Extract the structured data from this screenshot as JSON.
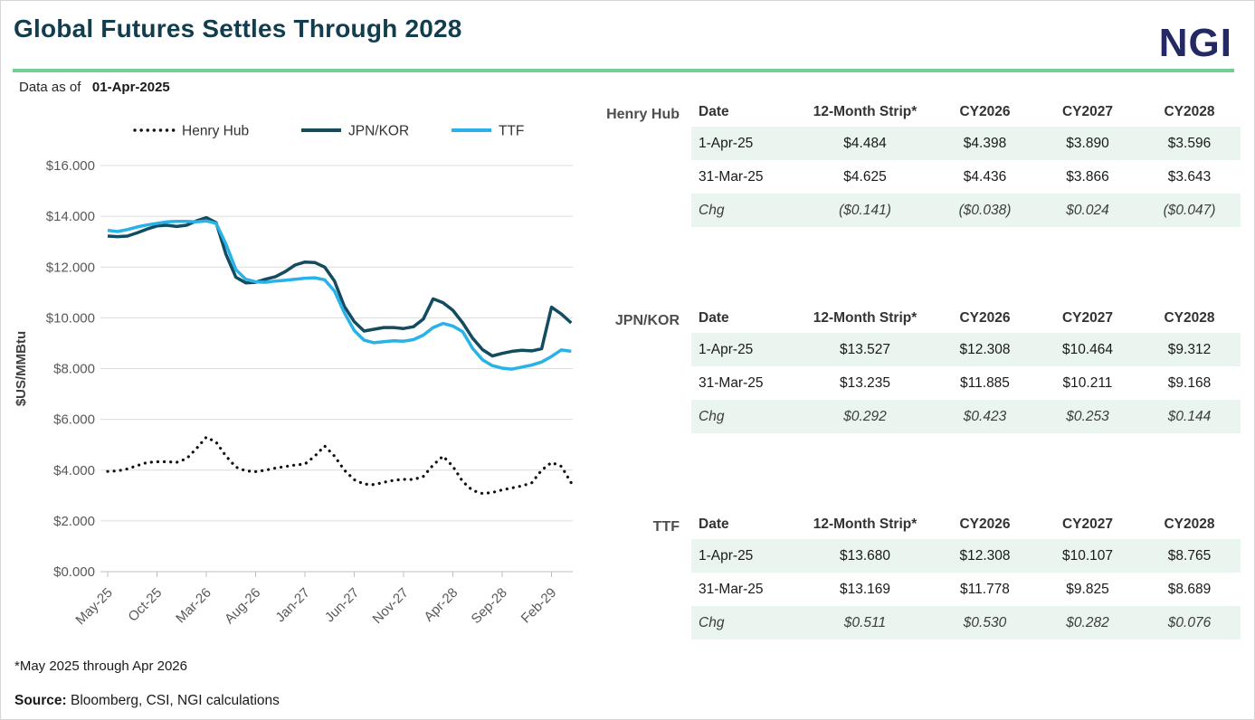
{
  "header": {
    "title": "Global Futures Settles Through 2028",
    "logo": "NGI",
    "data_as_of_label": "Data as of",
    "data_as_of_value": "01-Apr-2025"
  },
  "colors": {
    "title": "#113d4f",
    "logo": "#242963",
    "accent_green": "#72ce93",
    "row_green": "#e9f5ee",
    "henry_hub_line": "#111111",
    "jpn_kor_line": "#134b60",
    "ttf_line": "#29b2e8",
    "negative_red": "#f20000",
    "gridline": "#dcdcdc",
    "axis_text": "#595959"
  },
  "chart_data": {
    "type": "line",
    "title": "",
    "xlabel": "",
    "ylabel": "$US/MMBtu",
    "ylim": [
      0,
      16
    ],
    "ytick_labels": [
      "$0.000",
      "$2.000",
      "$4.000",
      "$6.000",
      "$8.000",
      "$10.000",
      "$12.000",
      "$14.000",
      "$16.000"
    ],
    "ytick_values": [
      0,
      2,
      4,
      6,
      8,
      10,
      12,
      14,
      16
    ],
    "grid": true,
    "legend_position": "top",
    "x_start": "May-2025",
    "x_end": "Apr-2029",
    "xtick_labels": [
      "May-25",
      "Oct-25",
      "Mar-26",
      "Aug-26",
      "Jan-27",
      "Jun-27",
      "Nov-27",
      "Apr-28",
      "Sep-28",
      "Feb-29"
    ],
    "xtick_month_indexes": [
      0,
      5,
      10,
      15,
      20,
      25,
      30,
      35,
      40,
      45
    ],
    "series": [
      {
        "name": "Henry Hub",
        "style": "dotted",
        "color": "#111111",
        "values": [
          3.95,
          3.97,
          4.05,
          4.18,
          4.3,
          4.33,
          4.33,
          4.31,
          4.45,
          4.85,
          5.3,
          5.1,
          4.55,
          4.12,
          3.97,
          3.94,
          4.0,
          4.08,
          4.14,
          4.2,
          4.24,
          4.55,
          4.95,
          4.55,
          4.0,
          3.62,
          3.45,
          3.43,
          3.52,
          3.6,
          3.64,
          3.63,
          3.75,
          4.2,
          4.55,
          4.15,
          3.55,
          3.2,
          3.08,
          3.12,
          3.22,
          3.3,
          3.38,
          3.5,
          4.0,
          4.3,
          4.15,
          3.5
        ]
      },
      {
        "name": "JPN/KOR",
        "style": "solid",
        "color": "#134b60",
        "values": [
          13.22,
          13.2,
          13.22,
          13.35,
          13.5,
          13.62,
          13.65,
          13.6,
          13.65,
          13.82,
          13.95,
          13.75,
          12.5,
          11.6,
          11.38,
          11.4,
          11.52,
          11.62,
          11.82,
          12.08,
          12.2,
          12.18,
          12.0,
          11.45,
          10.45,
          9.85,
          9.48,
          9.55,
          9.62,
          9.62,
          9.58,
          9.65,
          9.95,
          10.75,
          10.6,
          10.3,
          9.8,
          9.2,
          8.75,
          8.5,
          8.6,
          8.68,
          8.72,
          8.7,
          8.78,
          10.42,
          10.15,
          9.8
        ]
      },
      {
        "name": "TTF",
        "style": "solid",
        "color": "#29b2e8",
        "values": [
          13.45,
          13.4,
          13.48,
          13.58,
          13.66,
          13.72,
          13.78,
          13.8,
          13.8,
          13.78,
          13.82,
          13.72,
          12.9,
          11.9,
          11.52,
          11.42,
          11.4,
          11.45,
          11.48,
          11.52,
          11.56,
          11.58,
          11.5,
          11.05,
          10.2,
          9.5,
          9.12,
          9.02,
          9.06,
          9.1,
          9.08,
          9.14,
          9.32,
          9.62,
          9.78,
          9.68,
          9.45,
          8.8,
          8.35,
          8.12,
          8.02,
          7.98,
          8.06,
          8.14,
          8.26,
          8.48,
          8.74,
          8.68
        ]
      }
    ]
  },
  "tables": [
    {
      "label": "Henry Hub",
      "columns": [
        "Date",
        "12-Month Strip*",
        "CY2026",
        "CY2027",
        "CY2028"
      ],
      "rows": [
        [
          "1-Apr-25",
          "$4.484",
          "$4.398",
          "$3.890",
          "$3.596"
        ],
        [
          "31-Mar-25",
          "$4.625",
          "$4.436",
          "$3.866",
          "$3.643"
        ],
        [
          "Chg",
          "($0.141)",
          "($0.038)",
          "$0.024",
          "($0.047)"
        ]
      ]
    },
    {
      "label": "JPN/KOR",
      "columns": [
        "Date",
        "12-Month Strip*",
        "CY2026",
        "CY2027",
        "CY2028"
      ],
      "rows": [
        [
          "1-Apr-25",
          "$13.527",
          "$12.308",
          "$10.464",
          "$9.312"
        ],
        [
          "31-Mar-25",
          "$13.235",
          "$11.885",
          "$10.211",
          "$9.168"
        ],
        [
          "Chg",
          "$0.292",
          "$0.423",
          "$0.253",
          "$0.144"
        ]
      ]
    },
    {
      "label": "TTF",
      "columns": [
        "Date",
        "12-Month Strip*",
        "CY2026",
        "CY2027",
        "CY2028"
      ],
      "rows": [
        [
          "1-Apr-25",
          "$13.680",
          "$12.308",
          "$10.107",
          "$8.765"
        ],
        [
          "31-Mar-25",
          "$13.169",
          "$11.778",
          "$9.825",
          "$8.689"
        ],
        [
          "Chg",
          "$0.511",
          "$0.530",
          "$0.282",
          "$0.076"
        ]
      ]
    }
  ],
  "footer": {
    "footnote": "*May 2025 through Apr 2026",
    "source_label": "Source:",
    "source_value": " Bloomberg,  CSI,  NGI calculations"
  }
}
